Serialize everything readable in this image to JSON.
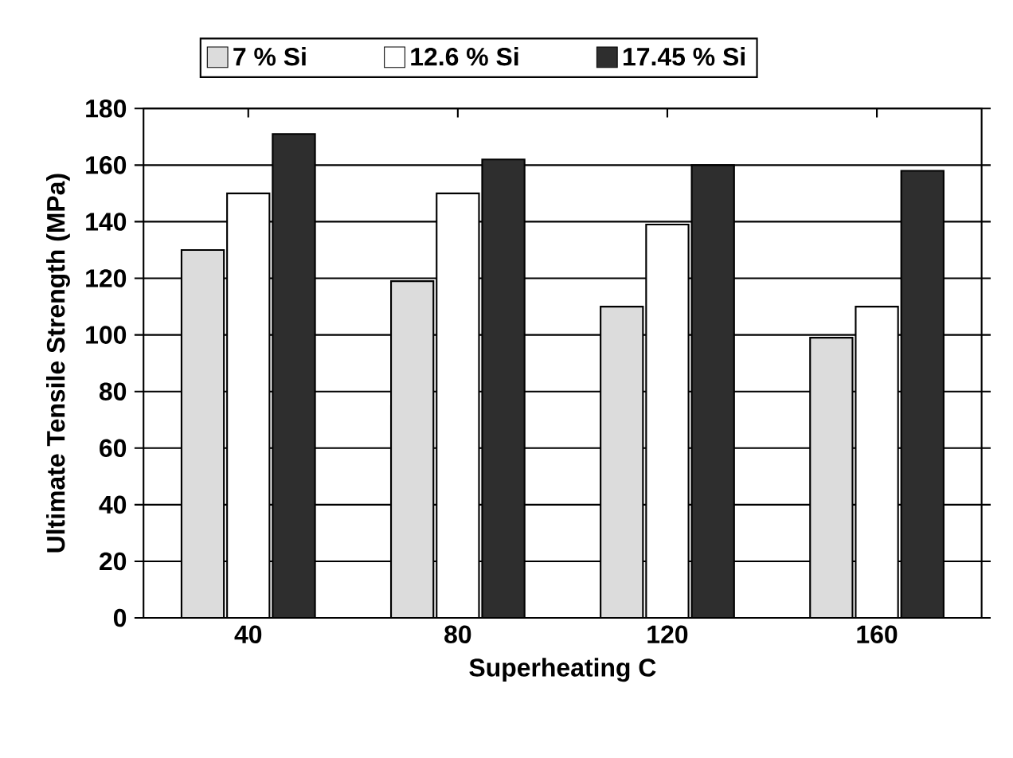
{
  "chart_data": {
    "type": "bar",
    "xlabel": "Superheating  C",
    "ylabel": "Ultimate Tensile Strength (MPa)",
    "categories": [
      "40",
      "80",
      "120",
      "160"
    ],
    "series": [
      {
        "name": "7 % Si",
        "color": "#dcdcdc",
        "values": [
          130,
          119,
          110,
          99
        ]
      },
      {
        "name": "12.6 % Si",
        "color": "#ffffff",
        "values": [
          150,
          150,
          139,
          110
        ]
      },
      {
        "name": "17.45 % Si",
        "color": "#2e2e2e",
        "values": [
          171,
          162,
          160,
          158
        ]
      }
    ],
    "ylim": [
      0,
      180
    ],
    "yticks": [
      0,
      20,
      40,
      60,
      80,
      100,
      120,
      140,
      160,
      180
    ],
    "grid": "y",
    "legend": "top"
  }
}
